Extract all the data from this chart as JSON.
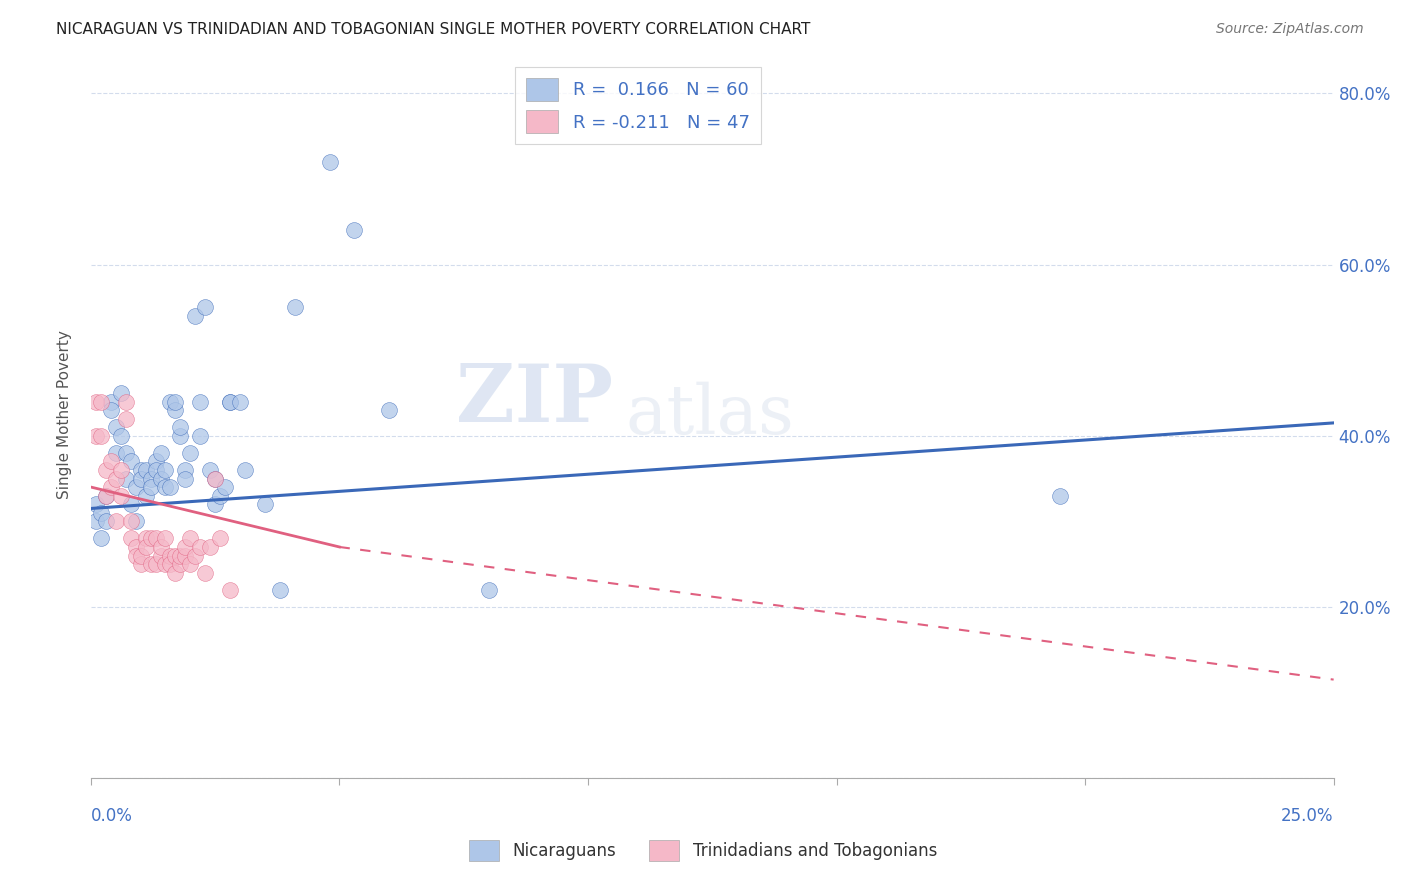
{
  "title": "NICARAGUAN VS TRINIDADIAN AND TOBAGONIAN SINGLE MOTHER POVERTY CORRELATION CHART",
  "source": "Source: ZipAtlas.com",
  "ylabel": "Single Mother Poverty",
  "legend_entry1": "R =  0.166   N = 60",
  "legend_entry2": "R = -0.211   N = 47",
  "blue_color": "#aec6e8",
  "pink_color": "#f5b8c8",
  "blue_line_color": "#3a68b8",
  "pink_line_color": "#e06080",
  "watermark_zip": "ZIP",
  "watermark_atlas": "atlas",
  "blue_scatter": [
    [
      0.001,
      0.32
    ],
    [
      0.001,
      0.3
    ],
    [
      0.002,
      0.31
    ],
    [
      0.002,
      0.28
    ],
    [
      0.003,
      0.3
    ],
    [
      0.003,
      0.33
    ],
    [
      0.004,
      0.44
    ],
    [
      0.004,
      0.43
    ],
    [
      0.005,
      0.41
    ],
    [
      0.005,
      0.38
    ],
    [
      0.006,
      0.45
    ],
    [
      0.006,
      0.4
    ],
    [
      0.007,
      0.38
    ],
    [
      0.007,
      0.35
    ],
    [
      0.008,
      0.37
    ],
    [
      0.008,
      0.32
    ],
    [
      0.009,
      0.34
    ],
    [
      0.009,
      0.3
    ],
    [
      0.01,
      0.36
    ],
    [
      0.01,
      0.35
    ],
    [
      0.011,
      0.33
    ],
    [
      0.011,
      0.36
    ],
    [
      0.012,
      0.35
    ],
    [
      0.012,
      0.34
    ],
    [
      0.013,
      0.37
    ],
    [
      0.013,
      0.36
    ],
    [
      0.014,
      0.35
    ],
    [
      0.014,
      0.38
    ],
    [
      0.015,
      0.34
    ],
    [
      0.015,
      0.36
    ],
    [
      0.016,
      0.34
    ],
    [
      0.016,
      0.44
    ],
    [
      0.017,
      0.43
    ],
    [
      0.017,
      0.44
    ],
    [
      0.018,
      0.4
    ],
    [
      0.018,
      0.41
    ],
    [
      0.019,
      0.36
    ],
    [
      0.019,
      0.35
    ],
    [
      0.02,
      0.38
    ],
    [
      0.021,
      0.54
    ],
    [
      0.022,
      0.44
    ],
    [
      0.022,
      0.4
    ],
    [
      0.023,
      0.55
    ],
    [
      0.024,
      0.36
    ],
    [
      0.025,
      0.35
    ],
    [
      0.025,
      0.32
    ],
    [
      0.026,
      0.33
    ],
    [
      0.027,
      0.34
    ],
    [
      0.028,
      0.44
    ],
    [
      0.028,
      0.44
    ],
    [
      0.03,
      0.44
    ],
    [
      0.031,
      0.36
    ],
    [
      0.035,
      0.32
    ],
    [
      0.038,
      0.22
    ],
    [
      0.041,
      0.55
    ],
    [
      0.048,
      0.72
    ],
    [
      0.053,
      0.64
    ],
    [
      0.06,
      0.43
    ],
    [
      0.08,
      0.22
    ],
    [
      0.195,
      0.33
    ]
  ],
  "pink_scatter": [
    [
      0.001,
      0.44
    ],
    [
      0.001,
      0.4
    ],
    [
      0.002,
      0.44
    ],
    [
      0.002,
      0.4
    ],
    [
      0.003,
      0.36
    ],
    [
      0.003,
      0.33
    ],
    [
      0.004,
      0.37
    ],
    [
      0.004,
      0.34
    ],
    [
      0.005,
      0.3
    ],
    [
      0.005,
      0.35
    ],
    [
      0.006,
      0.36
    ],
    [
      0.006,
      0.33
    ],
    [
      0.007,
      0.44
    ],
    [
      0.007,
      0.42
    ],
    [
      0.008,
      0.3
    ],
    [
      0.008,
      0.28
    ],
    [
      0.009,
      0.27
    ],
    [
      0.009,
      0.26
    ],
    [
      0.01,
      0.25
    ],
    [
      0.01,
      0.26
    ],
    [
      0.011,
      0.28
    ],
    [
      0.011,
      0.27
    ],
    [
      0.012,
      0.25
    ],
    [
      0.012,
      0.28
    ],
    [
      0.013,
      0.28
    ],
    [
      0.013,
      0.25
    ],
    [
      0.014,
      0.26
    ],
    [
      0.014,
      0.27
    ],
    [
      0.015,
      0.25
    ],
    [
      0.015,
      0.28
    ],
    [
      0.016,
      0.26
    ],
    [
      0.016,
      0.25
    ],
    [
      0.017,
      0.26
    ],
    [
      0.017,
      0.24
    ],
    [
      0.018,
      0.25
    ],
    [
      0.018,
      0.26
    ],
    [
      0.019,
      0.26
    ],
    [
      0.019,
      0.27
    ],
    [
      0.02,
      0.25
    ],
    [
      0.02,
      0.28
    ],
    [
      0.021,
      0.26
    ],
    [
      0.022,
      0.27
    ],
    [
      0.023,
      0.24
    ],
    [
      0.024,
      0.27
    ],
    [
      0.025,
      0.35
    ],
    [
      0.026,
      0.28
    ],
    [
      0.028,
      0.22
    ]
  ],
  "xlim": [
    0.0,
    0.25
  ],
  "ylim": [
    0.0,
    0.85
  ],
  "yticks": [
    0.0,
    0.2,
    0.4,
    0.6,
    0.8
  ],
  "blue_line": [
    0.0,
    0.315,
    0.25,
    0.415
  ],
  "pink_line_solid": [
    0.0,
    0.34,
    0.05,
    0.27
  ],
  "pink_line_dashed": [
    0.05,
    0.27,
    0.25,
    0.115
  ],
  "figsize": [
    14.06,
    8.92
  ],
  "dpi": 100
}
